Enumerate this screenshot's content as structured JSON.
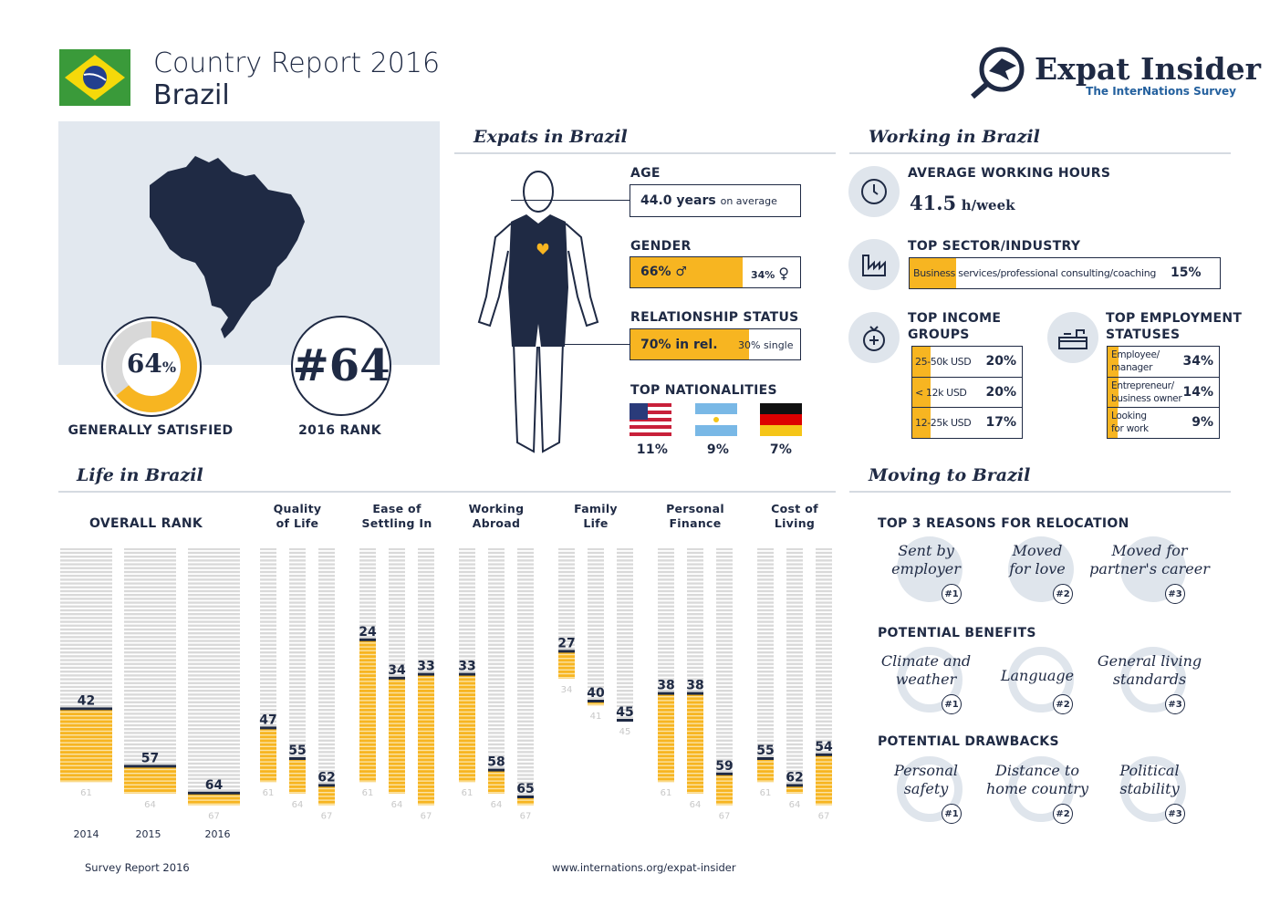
{
  "header": {
    "title": "Country Report 2016",
    "country": "Brazil",
    "logo_name": "Expat Insider",
    "logo_sub": "The InterNations Survey"
  },
  "summary": {
    "satisfied_pct": 64,
    "satisfied_label": "64",
    "pct_sign": "%",
    "satisfied_caption": "GENERALLY SATISFIED",
    "rank_label": "#64",
    "rank_caption": "2016 RANK"
  },
  "expats": {
    "title": "Expats in Brazil",
    "age_label": "AGE",
    "age_value": "44.0 years",
    "age_suffix": "on average",
    "gender_label": "GENDER",
    "male_pct": 66,
    "male_text": "66%",
    "female_text": "34%",
    "rel_label": "RELATIONSHIP STATUS",
    "in_rel_pct": 70,
    "in_rel_text": "70% in rel.",
    "single_text": "30% single",
    "nat_label": "TOP NATIONALITIES",
    "nationalities": [
      {
        "country": "United States",
        "pct": "11%"
      },
      {
        "country": "Argentina",
        "pct": "9%"
      },
      {
        "country": "Germany",
        "pct": "7%"
      }
    ]
  },
  "working": {
    "title": "Working in Brazil",
    "hours_label": "AVERAGE WORKING HOURS",
    "hours_value": "41.5",
    "hours_unit": "h/week",
    "sector_label": "TOP SECTOR/INDUSTRY",
    "sector_name": "Business services/professional consulting/coaching",
    "sector_pct": "15%",
    "income_label_1": "TOP INCOME",
    "income_label_2": "GROUPS",
    "income": [
      {
        "label": "25-50k USD",
        "pct": "20%",
        "value": 20
      },
      {
        "label": "< 12k USD",
        "pct": "20%",
        "value": 20
      },
      {
        "label": "12-25k USD",
        "pct": "17%",
        "value": 17
      }
    ],
    "emp_label_1": "TOP EMPLOYMENT",
    "emp_label_2": "STATUSES",
    "employment": [
      {
        "l1": "Employee/",
        "l2": "manager",
        "pct": "34%",
        "value": 34
      },
      {
        "l1": "Entrepreneur/",
        "l2": "business owner",
        "pct": "14%",
        "value": 14
      },
      {
        "l1": "Looking",
        "l2": "for work",
        "pct": "9%",
        "value": 9
      }
    ]
  },
  "life": {
    "title": "Life in Brazil"
  },
  "chart_data": {
    "type": "bar",
    "title": "",
    "ylabel": "",
    "xlabel": "",
    "y_axis": "rank (lower is better), bar height = countries ranked below",
    "years": [
      "2014",
      "2015",
      "2016"
    ],
    "groups": [
      {
        "name": "OVERALL RANK",
        "l1": "OVERALL RANK",
        "l2": "",
        "ranks": [
          42,
          57,
          64
        ],
        "totals": [
          61,
          64,
          67
        ]
      },
      {
        "name": "Quality of Life",
        "l1": "Quality",
        "l2": "of Life",
        "ranks": [
          47,
          55,
          62
        ],
        "totals": [
          61,
          64,
          67
        ]
      },
      {
        "name": "Ease of Settling In",
        "l1": "Ease of",
        "l2": "Settling In",
        "ranks": [
          24,
          34,
          33
        ],
        "totals": [
          61,
          64,
          67
        ]
      },
      {
        "name": "Working Abroad",
        "l1": "Working",
        "l2": "Abroad",
        "ranks": [
          33,
          58,
          65
        ],
        "totals": [
          61,
          64,
          67
        ]
      },
      {
        "name": "Family Life",
        "l1": "Family",
        "l2": "Life",
        "ranks": [
          27,
          40,
          45
        ],
        "totals": [
          34,
          41,
          45
        ]
      },
      {
        "name": "Personal Finance",
        "l1": "Personal",
        "l2": "Finance",
        "ranks": [
          38,
          38,
          59
        ],
        "totals": [
          61,
          64,
          67
        ]
      },
      {
        "name": "Cost of Living",
        "l1": "Cost of",
        "l2": "Living",
        "ranks": [
          55,
          62,
          54
        ],
        "totals": [
          61,
          64,
          67
        ]
      }
    ]
  },
  "moving": {
    "title": "Moving to Brazil",
    "reasons_label": "TOP 3 REASONS FOR RELOCATION",
    "reasons": [
      {
        "l1": "Sent by",
        "l2": "employer",
        "rank": "#1"
      },
      {
        "l1": "Moved",
        "l2": "for love",
        "rank": "#2"
      },
      {
        "l1": "Moved for",
        "l2": "partner's career",
        "rank": "#3"
      }
    ],
    "benefits_label": "POTENTIAL BENEFITS",
    "benefits": [
      {
        "l1": "Climate and",
        "l2": "weather",
        "rank": "#1"
      },
      {
        "l1": "Language",
        "l2": "",
        "rank": "#2"
      },
      {
        "l1": "General living",
        "l2": "standards",
        "rank": "#3"
      }
    ],
    "drawbacks_label": "POTENTIAL DRAWBACKS",
    "drawbacks": [
      {
        "l1": "Personal",
        "l2": "safety",
        "rank": "#1"
      },
      {
        "l1": "Distance to",
        "l2": "home country",
        "rank": "#2"
      },
      {
        "l1": "Political",
        "l2": "stability",
        "rank": "#3"
      }
    ]
  },
  "footer": {
    "left": "Survey Report 2016",
    "center": "www.internations.org/expat-insider"
  },
  "colors": {
    "navy": "#1f2a44",
    "yellow": "#f7b521",
    "light": "#dfe5ec"
  }
}
